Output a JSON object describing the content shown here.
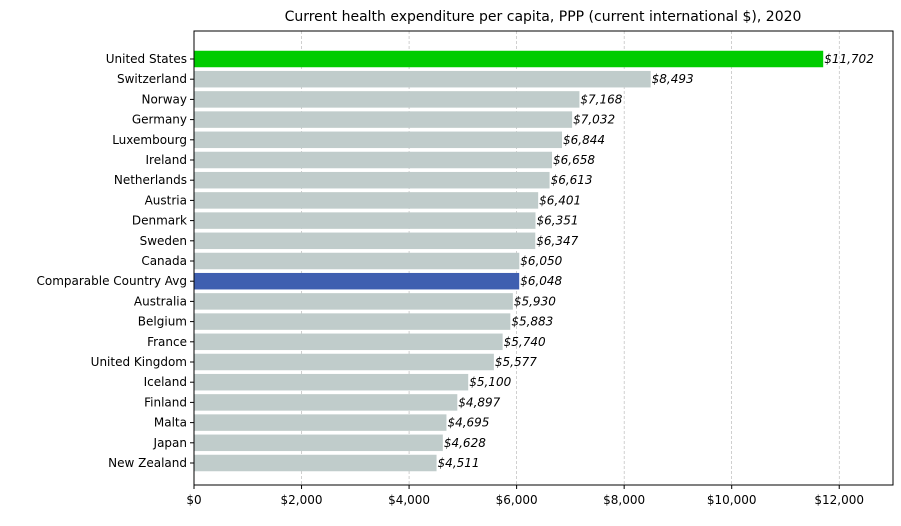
{
  "chart_data": {
    "type": "bar",
    "orientation": "horizontal",
    "title": "Current health expenditure per capita, PPP (current international $), 2020",
    "xlabel": "",
    "ylabel": "",
    "xlim": [
      0,
      13000
    ],
    "x_ticks": [
      0,
      2000,
      4000,
      6000,
      8000,
      10000,
      12000
    ],
    "x_tick_labels": [
      "$0",
      "$2,000",
      "$4,000",
      "$6,000",
      "$8,000",
      "$10,000",
      "$12,000"
    ],
    "grid": "x-dashed",
    "categories": [
      "United States",
      "Switzerland",
      "Norway",
      "Germany",
      "Luxembourg",
      "Ireland",
      "Netherlands",
      "Austria",
      "Denmark",
      "Sweden",
      "Canada",
      "Comparable Country Avg",
      "Australia",
      "Belgium",
      "France",
      "United Kingdom",
      "Iceland",
      "Finland",
      "Malta",
      "Japan",
      "New Zealand"
    ],
    "values": [
      11702,
      8493,
      7168,
      7032,
      6844,
      6658,
      6613,
      6401,
      6351,
      6347,
      6050,
      6048,
      5930,
      5883,
      5740,
      5577,
      5100,
      4897,
      4695,
      4628,
      4511
    ],
    "value_labels": [
      "$11,702",
      "$8,493",
      "$7,168",
      "$7,032",
      "$6,844",
      "$6,658",
      "$6,613",
      "$6,401",
      "$6,351",
      "$6,347",
      "$6,050",
      "$6,048",
      "$5,930",
      "$5,883",
      "$5,740",
      "$5,577",
      "$5,100",
      "$4,897",
      "$4,695",
      "$4,628",
      "$4,511"
    ],
    "colors": {
      "default": "#c0cccb",
      "United States": "#00cc00",
      "Comparable Country Avg": "#3f5fb0"
    }
  }
}
